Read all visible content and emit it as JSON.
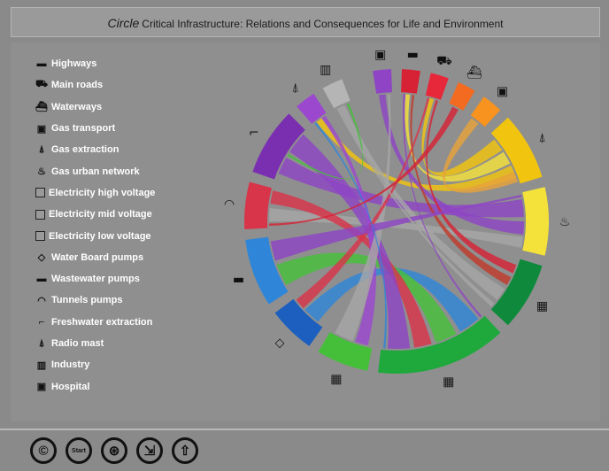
{
  "title": {
    "brand": "Circle",
    "text": "Critical Infrastructure: Relations and Consequences for Life and Environment"
  },
  "legend": [
    {
      "label": "Highways",
      "icon": "highway-icon",
      "glyph": "▬"
    },
    {
      "label": "Main roads",
      "icon": "car-icon",
      "glyph": "⛟"
    },
    {
      "label": "Waterways",
      "icon": "ship-icon",
      "glyph": "⛴"
    },
    {
      "label": "Gas transport",
      "icon": "gas-transport-icon",
      "glyph": "▣"
    },
    {
      "label": "Gas extraction",
      "icon": "gas-extraction-icon",
      "glyph": "⍋"
    },
    {
      "label": "Gas urban network",
      "icon": "flame-icon",
      "glyph": "♨"
    },
    {
      "label": "Electricity high voltage",
      "icon": "electricity-high-icon",
      "glyph": ""
    },
    {
      "label": "Electricity mid voltage",
      "icon": "electricity-mid-icon",
      "glyph": ""
    },
    {
      "label": "Electricity low voltage",
      "icon": "electricity-low-icon",
      "glyph": ""
    },
    {
      "label": "Water Board pumps",
      "icon": "water-drop-icon",
      "glyph": "◇"
    },
    {
      "label": "Wastewater pumps",
      "icon": "wastewater-icon",
      "glyph": "▬"
    },
    {
      "label": "Tunnels pumps",
      "icon": "tunnel-icon",
      "glyph": "◠"
    },
    {
      "label": "Freshwater extraction",
      "icon": "faucet-icon",
      "glyph": "⌐"
    },
    {
      "label": "Radio mast",
      "icon": "radio-mast-icon",
      "glyph": "⍋"
    },
    {
      "label": "Industry",
      "icon": "factory-icon",
      "glyph": "▥"
    },
    {
      "label": "Hospital",
      "icon": "hospital-icon",
      "glyph": "▣"
    }
  ],
  "colors": {
    "background": "#8a8a8a",
    "panel": "#8f8f8f",
    "link_neutral": "#a6a6a6"
  },
  "diagram": {
    "type": "chord",
    "nodes": [
      {
        "key": "hospital",
        "color": "#8e44c4",
        "start": -9,
        "end": -2,
        "icon": "hospital-icon"
      },
      {
        "key": "highways",
        "color": "#d62234",
        "start": 2,
        "end": 9,
        "icon": "highway-icon"
      },
      {
        "key": "main_roads",
        "color": "#e6283a",
        "start": 13,
        "end": 20,
        "icon": "car-icon"
      },
      {
        "key": "waterways",
        "color": "#f26b21",
        "start": 24,
        "end": 31,
        "icon": "ship-icon"
      },
      {
        "key": "gas_transport",
        "color": "#f7931e",
        "start": 35,
        "end": 43,
        "icon": "gas-transport-icon"
      },
      {
        "key": "gas_extraction",
        "color": "#f1c40f",
        "start": 47,
        "end": 73,
        "icon": "gas-extraction-icon"
      },
      {
        "key": "gas_urban",
        "color": "#f4e23a",
        "start": 77,
        "end": 103,
        "icon": "flame-icon"
      },
      {
        "key": "elec_high",
        "color": "#0f8a3c",
        "start": 107,
        "end": 133,
        "icon": "electricity-high-icon"
      },
      {
        "key": "elec_mid",
        "color": "#1fa83c",
        "start": 137,
        "end": 187,
        "icon": "electricity-mid-icon"
      },
      {
        "key": "elec_low",
        "color": "#45bf3a",
        "start": 191,
        "end": 211,
        "icon": "electricity-low-icon"
      },
      {
        "key": "water_board",
        "color": "#1c5fbf",
        "start": 215,
        "end": 233,
        "icon": "water-drop-icon"
      },
      {
        "key": "wastewater",
        "color": "#2f86d8",
        "start": 237,
        "end": 263,
        "icon": "wastewater-icon"
      },
      {
        "key": "tunnels",
        "color": "#d8344a",
        "start": 267,
        "end": 285,
        "icon": "tunnel-icon"
      },
      {
        "key": "freshwater",
        "color": "#7a2fb0",
        "start": 289,
        "end": 315,
        "icon": "faucet-icon"
      },
      {
        "key": "radio_mast",
        "color": "#9b48cf",
        "start": 319,
        "end": 327,
        "icon": "radio-mast-icon"
      },
      {
        "key": "industry",
        "color": "#b5b5b5",
        "start": 331,
        "end": 339,
        "icon": "factory-icon"
      }
    ],
    "links": [
      {
        "from": "gas_extraction",
        "to": "main_roads",
        "a": [
          50,
          56
        ],
        "b": [
          15,
          17
        ],
        "color": "#f1c40f"
      },
      {
        "from": "gas_extraction",
        "to": "highways",
        "a": [
          57,
          63
        ],
        "b": [
          4,
          6
        ],
        "color": "#f4e23a"
      },
      {
        "from": "gas_extraction",
        "to": "radio_mast",
        "a": [
          64,
          70
        ],
        "b": [
          321,
          324
        ],
        "color": "#f1c40f"
      },
      {
        "from": "gas_transport",
        "to": "gas_extraction",
        "a": [
          36,
          40
        ],
        "b": [
          67,
          72
        ],
        "color": "#e8a23a"
      },
      {
        "from": "gas_urban",
        "to": "freshwater",
        "a": [
          80,
          88
        ],
        "b": [
          292,
          300
        ],
        "color": "#8e44c4"
      },
      {
        "from": "gas_urban",
        "to": "hospital",
        "a": [
          90,
          96
        ],
        "b": [
          -8,
          -5
        ],
        "color": "#8e44c4"
      },
      {
        "from": "gas_urban",
        "to": "tunnels",
        "a": [
          97,
          102
        ],
        "b": [
          270,
          276
        ],
        "color": "#a6a6a6"
      },
      {
        "from": "elec_high",
        "to": "main_roads",
        "a": [
          110,
          114
        ],
        "b": [
          18,
          19
        ],
        "color": "#d62234"
      },
      {
        "from": "elec_high",
        "to": "highways",
        "a": [
          116,
          120
        ],
        "b": [
          7,
          8
        ],
        "color": "#c0392b"
      },
      {
        "from": "elec_high",
        "to": "industry",
        "a": [
          122,
          128
        ],
        "b": [
          333,
          336
        ],
        "color": "#a6a6a6"
      },
      {
        "from": "elec_mid",
        "to": "water_board",
        "a": [
          140,
          150
        ],
        "b": [
          218,
          226
        ],
        "color": "#2f86d8"
      },
      {
        "from": "elec_mid",
        "to": "wastewater",
        "a": [
          152,
          162
        ],
        "b": [
          240,
          250
        ],
        "color": "#45bf3a"
      },
      {
        "from": "elec_mid",
        "to": "tunnels",
        "a": [
          164,
          172
        ],
        "b": [
          278,
          284
        ],
        "color": "#d8344a"
      },
      {
        "from": "elec_mid",
        "to": "freshwater",
        "a": [
          174,
          184
        ],
        "b": [
          303,
          313
        ],
        "color": "#8e44c4"
      },
      {
        "from": "elec_low",
        "to": "radio_mast",
        "a": [
          193,
          199
        ],
        "b": [
          324,
          326
        ],
        "color": "#9b48cf"
      },
      {
        "from": "elec_low",
        "to": "hospital",
        "a": [
          200,
          209
        ],
        "b": [
          -4,
          -3
        ],
        "color": "#a6a6a6"
      },
      {
        "from": "water_board",
        "to": "main_roads",
        "a": [
          227,
          232
        ],
        "b": [
          14,
          15
        ],
        "color": "#d8344a"
      },
      {
        "from": "wastewater",
        "to": "gas_urban",
        "a": [
          252,
          261
        ],
        "b": [
          78,
          79
        ],
        "color": "#8e44c4"
      },
      {
        "from": "freshwater",
        "to": "industry",
        "a": [
          301,
          302
        ],
        "b": [
          337,
          338
        ],
        "color": "#45bf3a"
      },
      {
        "from": "radio_mast",
        "to": "elec_mid",
        "a": [
          320,
          321
        ],
        "b": [
          185,
          186
        ],
        "color": "#2f86d8"
      },
      {
        "from": "industry",
        "to": "elec_high",
        "a": [
          332,
          333
        ],
        "b": [
          130,
          132
        ],
        "color": "#a6a6a6"
      },
      {
        "from": "highways",
        "to": "elec_mid",
        "a": [
          3,
          4
        ],
        "b": [
          138,
          139
        ],
        "color": "#8e44c4"
      },
      {
        "from": "waterways",
        "to": "tunnels",
        "a": [
          26,
          29
        ],
        "b": [
          268,
          269
        ],
        "color": "#d62234"
      }
    ]
  },
  "toolbar": [
    {
      "name": "copyright-button",
      "icon": "copyright-icon",
      "glyph": "©"
    },
    {
      "name": "start-button",
      "icon": "start-icon",
      "glyph": "Start"
    },
    {
      "name": "network-button",
      "icon": "network-icon",
      "glyph": "⊛"
    },
    {
      "name": "export-button",
      "icon": "export-icon",
      "glyph": "⇲"
    },
    {
      "name": "upload-button",
      "icon": "upload-arrow-icon",
      "glyph": "⇧"
    }
  ]
}
